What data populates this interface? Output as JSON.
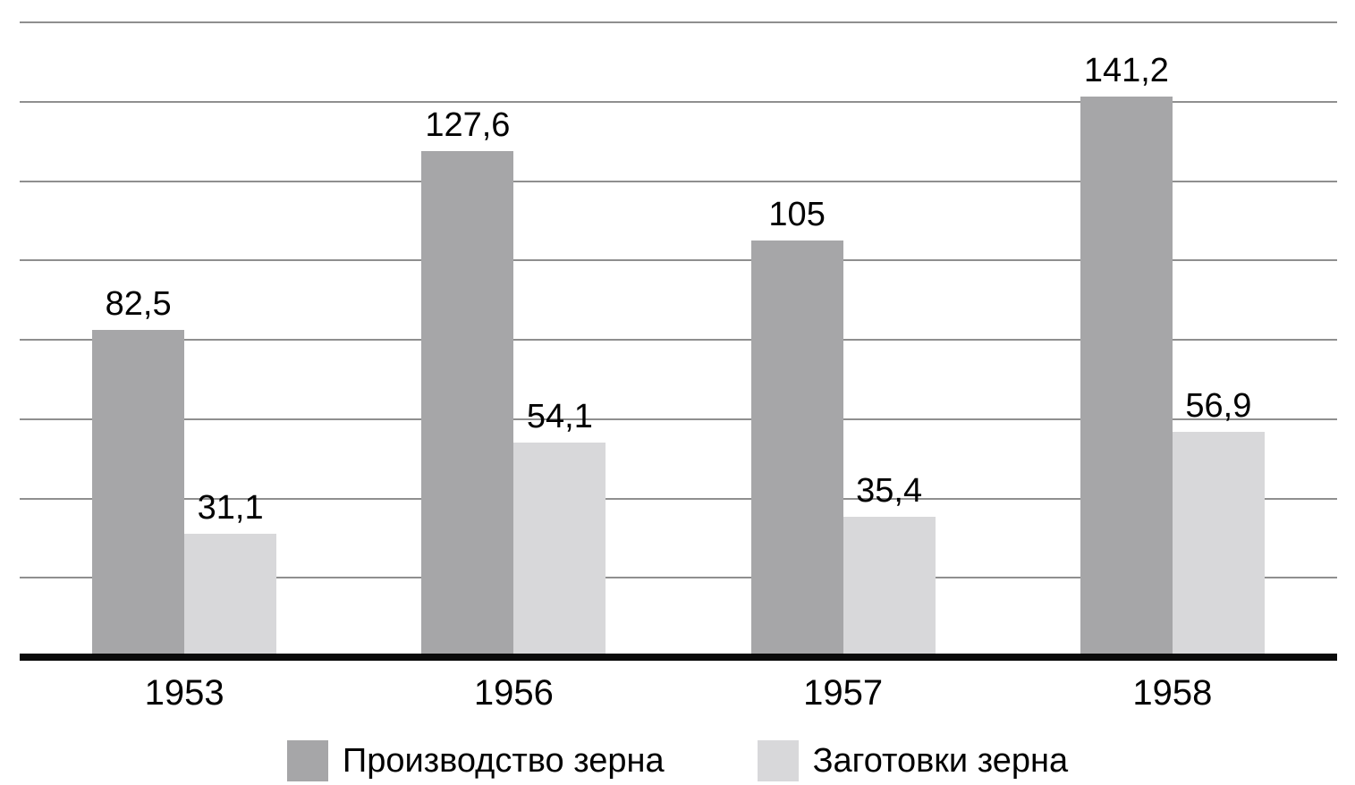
{
  "chart_data": {
    "type": "bar",
    "title": "",
    "xlabel": "",
    "ylabel": "",
    "categories": [
      "1953",
      "1956",
      "1957",
      "1958"
    ],
    "series": [
      {
        "name": "Производство зерна",
        "values": [
          82.5,
          127.6,
          105,
          141.2
        ],
        "labels": [
          "82,5",
          "127,6",
          "105",
          "141,2"
        ],
        "color": "#a6a6a8"
      },
      {
        "name": "Заготовки зерна",
        "values": [
          31.1,
          54.1,
          35.4,
          56.9
        ],
        "labels": [
          "31,1",
          "54,1",
          "35,4",
          "56,9"
        ],
        "color": "#d8d8da"
      }
    ],
    "ylim": [
      0,
      160
    ],
    "gridline_step": 20,
    "grid": true,
    "y_tick_labels_visible": false,
    "legend_position": "bottom"
  },
  "colors": {
    "background": "#ffffff",
    "gridline": "#8f8f8f",
    "baseline": "#0a0a0a",
    "text": "#000000"
  }
}
